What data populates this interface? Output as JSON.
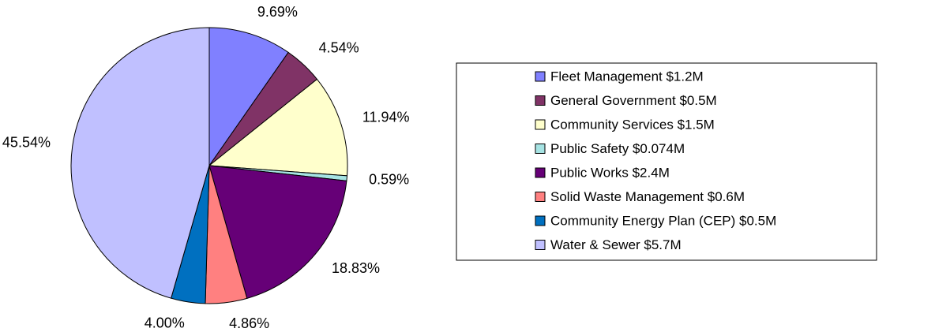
{
  "chart_data": {
    "type": "pie",
    "categories": [
      "Fleet Management $1.2M",
      "General Government $0.5M",
      "Community Services $1.5M",
      "Public Safety $0.074M",
      "Public Works $2.4M",
      "Solid Waste Management $0.6M",
      "Community Energy Plan (CEP) $0.5M",
      "Water & Sewer $5.7M"
    ],
    "values": [
      9.69,
      4.54,
      11.94,
      0.59,
      18.83,
      4.86,
      4.0,
      45.54
    ],
    "value_labels": [
      "9.69%",
      "4.54%",
      "11.94%",
      "0.59%",
      "18.83%",
      "4.86%",
      "4.00%",
      "45.54%"
    ],
    "colors": [
      "#8080ff",
      "#803366",
      "#ffffcc",
      "#a6e3e3",
      "#660077",
      "#ff8080",
      "#0070c0",
      "#c0c0ff"
    ],
    "legend": "right"
  }
}
